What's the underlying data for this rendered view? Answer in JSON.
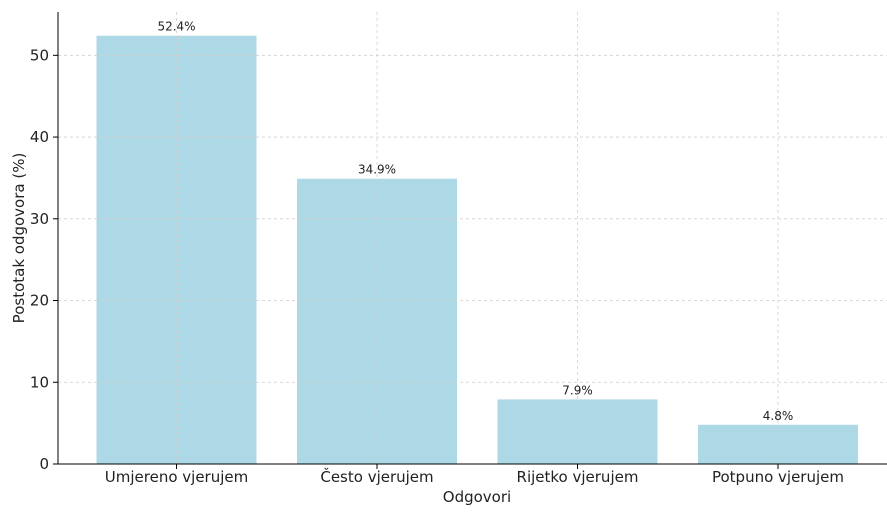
{
  "chart_data": {
    "type": "bar",
    "title": "",
    "xlabel": "Odgovori",
    "ylabel": "Postotak odgovora (%)",
    "categories": [
      "Umjereno vjerujem",
      "Često vjerujem",
      "Rijetko vjerujem",
      "Potpuno vjerujem"
    ],
    "values": [
      52.4,
      34.9,
      7.9,
      4.8
    ],
    "data_labels": [
      "52.4%",
      "34.9%",
      "7.9%",
      "4.8%"
    ],
    "ylim": [
      0,
      55.3
    ],
    "yticks": [
      0,
      10,
      20,
      30,
      40,
      50
    ],
    "grid": true,
    "legend": "none",
    "colors": {
      "bar": "#add8e6",
      "grid": "#cfcfcf",
      "axis": "#000000",
      "text": "#222222"
    }
  }
}
